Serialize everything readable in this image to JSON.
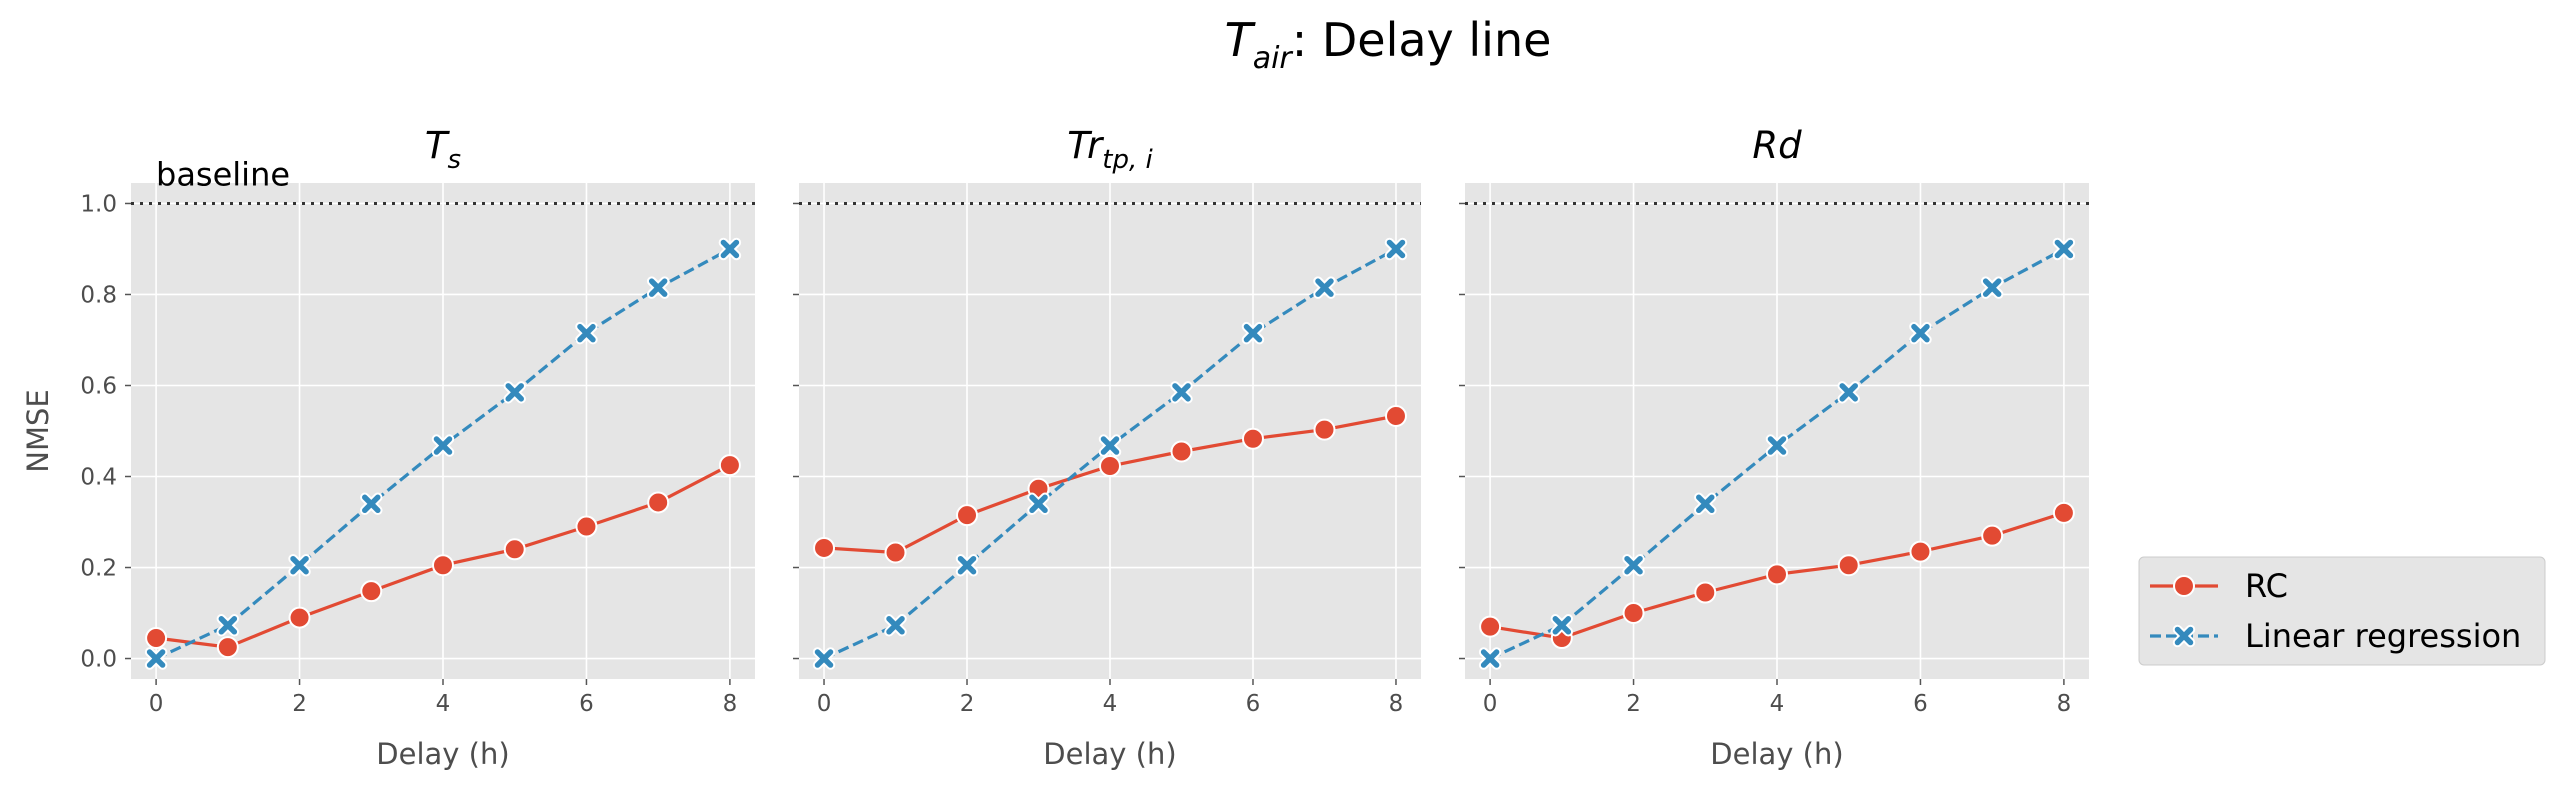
{
  "figure": {
    "suptitle_symbol": "T",
    "suptitle_subscript": "air",
    "suptitle_rest": ": Delay line"
  },
  "chart_data": [
    {
      "type": "line",
      "title_symbol": "T",
      "title_subscript": "s",
      "xlabel": "Delay (h)",
      "ylabel": "NMSE",
      "x": [
        0,
        1,
        2,
        3,
        4,
        5,
        6,
        7,
        8
      ],
      "xticks": [
        0,
        2,
        4,
        6,
        8
      ],
      "yticks": [
        0.0,
        0.2,
        0.4,
        0.6,
        0.8,
        1.0
      ],
      "xlim": [
        -0.35,
        8.35
      ],
      "ylim": [
        -0.045,
        1.045
      ],
      "grid": true,
      "baseline": {
        "y": 1.0,
        "label": "baseline"
      },
      "series": [
        {
          "name": "RC",
          "color": "#E24A33",
          "marker": "circle",
          "style": "solid",
          "values": [
            0.045,
            0.025,
            0.09,
            0.148,
            0.205,
            0.24,
            0.29,
            0.343,
            0.425
          ]
        },
        {
          "name": "Linear regression",
          "color": "#348ABD",
          "marker": "x",
          "style": "dashed",
          "values": [
            0.0,
            0.073,
            0.205,
            0.34,
            0.468,
            0.585,
            0.715,
            0.815,
            0.9
          ]
        }
      ]
    },
    {
      "type": "line",
      "title_symbol": "Tr",
      "title_subscript": "tp, i",
      "xlabel": "Delay (h)",
      "ylabel": "",
      "x": [
        0,
        1,
        2,
        3,
        4,
        5,
        6,
        7,
        8
      ],
      "xticks": [
        0,
        2,
        4,
        6,
        8
      ],
      "yticks": [
        0.0,
        0.2,
        0.4,
        0.6,
        0.8,
        1.0
      ],
      "xlim": [
        -0.35,
        8.35
      ],
      "ylim": [
        -0.045,
        1.045
      ],
      "grid": true,
      "baseline": {
        "y": 1.0,
        "label": ""
      },
      "series": [
        {
          "name": "RC",
          "color": "#E24A33",
          "marker": "circle",
          "style": "solid",
          "values": [
            0.243,
            0.233,
            0.315,
            0.373,
            0.423,
            0.455,
            0.483,
            0.503,
            0.533
          ]
        },
        {
          "name": "Linear regression",
          "color": "#348ABD",
          "marker": "x",
          "style": "dashed",
          "values": [
            0.0,
            0.073,
            0.205,
            0.34,
            0.468,
            0.585,
            0.715,
            0.815,
            0.9
          ]
        }
      ]
    },
    {
      "type": "line",
      "title_symbol": "Rd",
      "title_subscript": "",
      "xlabel": "Delay (h)",
      "ylabel": "",
      "x": [
        0,
        1,
        2,
        3,
        4,
        5,
        6,
        7,
        8
      ],
      "xticks": [
        0,
        2,
        4,
        6,
        8
      ],
      "yticks": [
        0.0,
        0.2,
        0.4,
        0.6,
        0.8,
        1.0
      ],
      "xlim": [
        -0.35,
        8.35
      ],
      "ylim": [
        -0.045,
        1.045
      ],
      "grid": true,
      "baseline": {
        "y": 1.0,
        "label": ""
      },
      "series": [
        {
          "name": "RC",
          "color": "#E24A33",
          "marker": "circle",
          "style": "solid",
          "values": [
            0.07,
            0.045,
            0.1,
            0.145,
            0.185,
            0.205,
            0.235,
            0.27,
            0.32
          ]
        },
        {
          "name": "Linear regression",
          "color": "#348ABD",
          "marker": "x",
          "style": "dashed",
          "values": [
            0.0,
            0.073,
            0.205,
            0.34,
            0.468,
            0.585,
            0.715,
            0.815,
            0.9
          ]
        }
      ]
    }
  ],
  "legend": {
    "position": "lower-right outside",
    "items": [
      {
        "label": "RC",
        "color": "#E24A33",
        "marker": "circle",
        "style": "solid"
      },
      {
        "label": "Linear regression",
        "color": "#348ABD",
        "marker": "x",
        "style": "dashed"
      }
    ]
  },
  "colors": {
    "panel_bg": "#E5E5E5",
    "grid": "#FFFFFF",
    "baseline": "#333333",
    "legend_bg": "#E5E5E5"
  }
}
